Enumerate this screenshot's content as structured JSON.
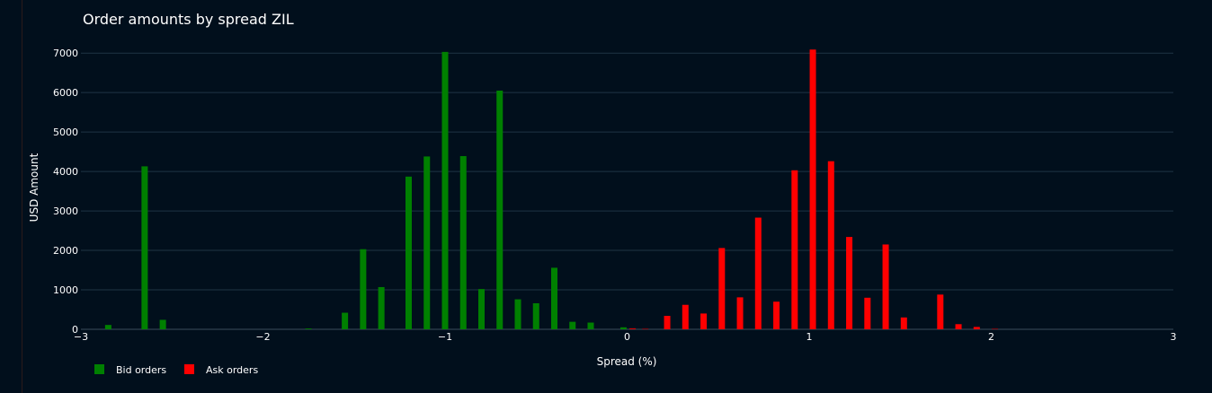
{
  "chart_data": {
    "type": "bar",
    "title": "Order amounts by spread ZIL",
    "xlabel": "Spread (%)",
    "ylabel": "USD Amount",
    "xlim": [
      -3,
      3
    ],
    "ylim": [
      0,
      7300
    ],
    "xticks": [
      -3,
      -2,
      -1,
      0,
      1,
      2,
      3
    ],
    "yticks": [
      0,
      1000,
      2000,
      3000,
      4000,
      5000,
      6000,
      7000
    ],
    "grid": true,
    "legend_position": "bottom-left",
    "series": [
      {
        "name": "Bid orders",
        "color": "#008000",
        "points": [
          {
            "x": -2.85,
            "y": 110
          },
          {
            "x": -2.65,
            "y": 4130
          },
          {
            "x": -2.55,
            "y": 240
          },
          {
            "x": -1.75,
            "y": 20
          },
          {
            "x": -1.55,
            "y": 420
          },
          {
            "x": -1.45,
            "y": 2030
          },
          {
            "x": -1.35,
            "y": 1070
          },
          {
            "x": -1.2,
            "y": 3870
          },
          {
            "x": -1.1,
            "y": 4380
          },
          {
            "x": -1.0,
            "y": 7030
          },
          {
            "x": -0.9,
            "y": 4390
          },
          {
            "x": -0.8,
            "y": 1020
          },
          {
            "x": -0.7,
            "y": 6050
          },
          {
            "x": -0.6,
            "y": 760
          },
          {
            "x": -0.5,
            "y": 660
          },
          {
            "x": -0.4,
            "y": 1560
          },
          {
            "x": -0.3,
            "y": 190
          },
          {
            "x": -0.2,
            "y": 170
          },
          {
            "x": -0.02,
            "y": 50
          }
        ]
      },
      {
        "name": "Ask orders",
        "color": "#ff0000",
        "points": [
          {
            "x": 0.03,
            "y": 20
          },
          {
            "x": 0.1,
            "y": 10
          },
          {
            "x": 0.22,
            "y": 340
          },
          {
            "x": 0.32,
            "y": 620
          },
          {
            "x": 0.42,
            "y": 400
          },
          {
            "x": 0.52,
            "y": 2060
          },
          {
            "x": 0.62,
            "y": 810
          },
          {
            "x": 0.72,
            "y": 2830
          },
          {
            "x": 0.82,
            "y": 700
          },
          {
            "x": 0.92,
            "y": 4030
          },
          {
            "x": 1.02,
            "y": 7090
          },
          {
            "x": 1.12,
            "y": 4260
          },
          {
            "x": 1.22,
            "y": 2340
          },
          {
            "x": 1.32,
            "y": 800
          },
          {
            "x": 1.42,
            "y": 2150
          },
          {
            "x": 1.52,
            "y": 300
          },
          {
            "x": 1.72,
            "y": 880
          },
          {
            "x": 1.82,
            "y": 130
          },
          {
            "x": 1.92,
            "y": 60
          },
          {
            "x": 2.02,
            "y": 10
          }
        ]
      }
    ]
  }
}
